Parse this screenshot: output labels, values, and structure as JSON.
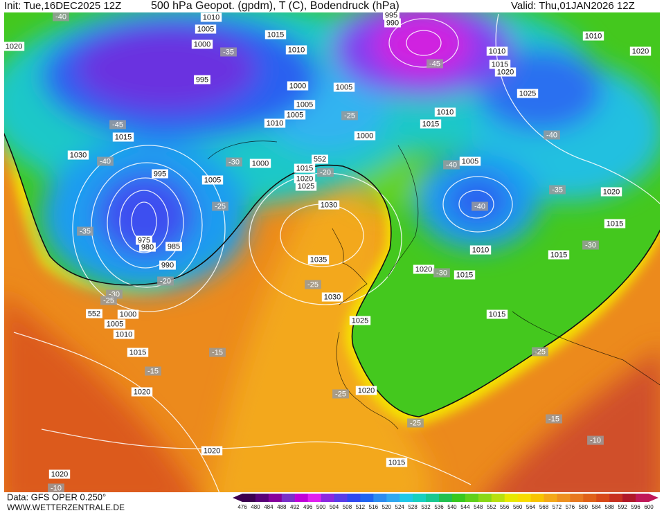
{
  "header": {
    "init": "Init: Tue,16DEC2025 12Z",
    "title": "500 hPa Geopot. (gpdm), T (C), Bodendruck (hPa)",
    "valid": "Valid: Thu,01JAN2026 12Z"
  },
  "footer": {
    "source": "Data: GFS OPER 0.250°",
    "website": "WWW.WETTERZENTRALE.DE"
  },
  "map": {
    "labels": [
      "-40",
      "1010",
      "1005",
      "1015",
      "1000",
      "-35",
      "1010",
      "995",
      "1020",
      "995",
      "990",
      "-45",
      "1010",
      "1020",
      "1010",
      "1015",
      "1020",
      "1025",
      "1000",
      "1005",
      "1005",
      "1005",
      "-25",
      "1010",
      "1010",
      "1015",
      "-45",
      "1015",
      "1000",
      "-40",
      "1030",
      "-40",
      "-30",
      "1000",
      "552",
      "1015",
      "-20",
      "1020",
      "1025",
      "-40",
      "1005",
      "995",
      "1005",
      "-35",
      "1020",
      "1030",
      "-25",
      "-40",
      "1015",
      "-35",
      "975",
      "980",
      "985",
      "-30",
      "1010",
      "1015",
      "1035",
      "990",
      "1020",
      "-30",
      "1015",
      "-20",
      "-25",
      "1030",
      "-30",
      "-25",
      "552",
      "1000",
      "1005",
      "1015",
      "1025",
      "1010",
      "1015",
      "-15",
      "-25",
      "-15",
      "1020",
      "-25",
      "1020",
      "-25",
      "-15",
      "-10",
      "1020",
      "1015",
      "1020",
      "-10"
    ]
  },
  "colorbar": {
    "labels": [
      476,
      480,
      484,
      488,
      492,
      496,
      500,
      504,
      508,
      512,
      516,
      520,
      524,
      528,
      532,
      536,
      540,
      544,
      548,
      552,
      556,
      560,
      564,
      568,
      572,
      576,
      580,
      584,
      588,
      592,
      596,
      600
    ],
    "colors": [
      "#3c0050",
      "#5a0078",
      "#86009c",
      "#7a30c8",
      "#c000d8",
      "#e020f0",
      "#8c28e0",
      "#5a3ce8",
      "#3048f0",
      "#2064f0",
      "#2c8cf0",
      "#30a8f0",
      "#20c8e8",
      "#18d0c0",
      "#18c890",
      "#22c050",
      "#38c81e",
      "#60d01a",
      "#8ad818",
      "#b8e010",
      "#e8e800",
      "#f8dc00",
      "#f8c400",
      "#f4a818",
      "#ee9020",
      "#e87820",
      "#e06018",
      "#d84818",
      "#c83020",
      "#b01828",
      "#c01858"
    ]
  }
}
